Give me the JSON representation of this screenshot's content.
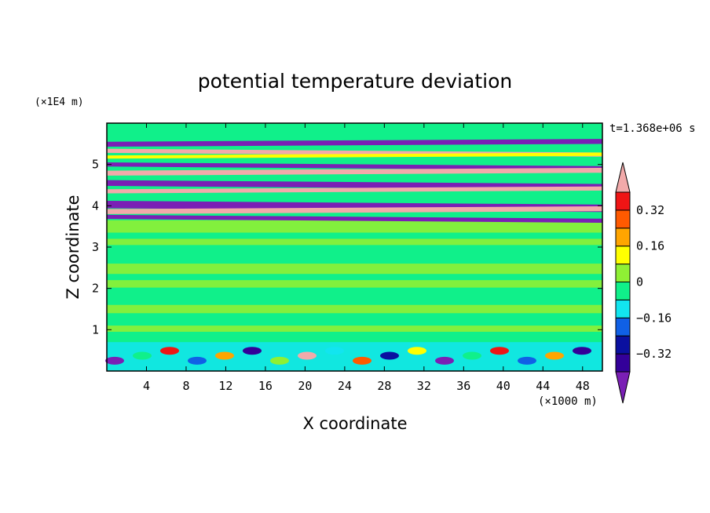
{
  "chart_data": {
    "type": "heatmap",
    "title": "potential temperature deviation",
    "xlabel": "X coordinate",
    "ylabel": "Z coordinate",
    "x_unit": "(×1000 m)",
    "y_unit": "(×1E4 m)",
    "time_label": "t=1.368e+06 s",
    "xlim": [
      0,
      50
    ],
    "ylim": [
      0,
      6
    ],
    "x_ticks": [
      4,
      8,
      12,
      16,
      20,
      24,
      28,
      32,
      36,
      40,
      44,
      48
    ],
    "y_ticks": [
      1,
      2,
      3,
      4,
      5
    ],
    "colorbar": {
      "levels": [
        -0.4,
        -0.32,
        -0.24,
        -0.16,
        -0.08,
        0,
        0.08,
        0.16,
        0.24,
        0.32,
        0.4
      ],
      "tick_values": [
        0.32,
        0.16,
        0,
        -0.16,
        -0.32
      ],
      "tick_labels": [
        "0.32",
        "0.16",
        "0",
        "−0.16",
        "−0.32"
      ],
      "colors": [
        "#7a1fb5",
        "#330099",
        "#0a10a0",
        "#1060e6",
        "#12e5ef",
        "#10f08a",
        "#8ff034",
        "#ffff00",
        "#ffa500",
        "#ff5a00",
        "#ef1515",
        "#f2aaaa"
      ],
      "extend": "both"
    }
  }
}
